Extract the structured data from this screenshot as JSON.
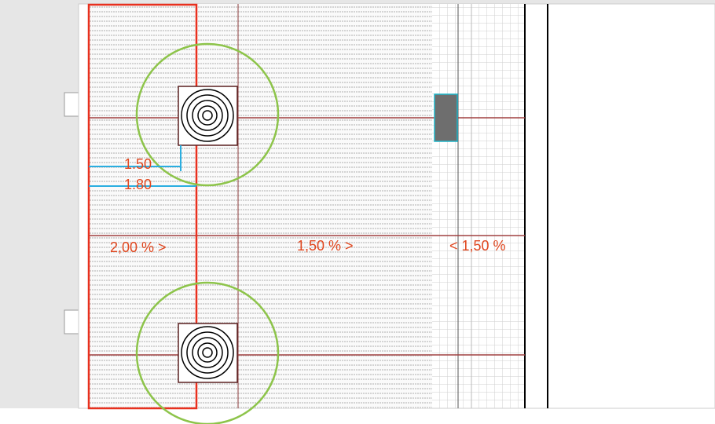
{
  "dimensions": [
    {
      "label": "1.50"
    },
    {
      "label": "1.80"
    }
  ],
  "slopes": [
    {
      "label": "2,00 % >"
    },
    {
      "label": "1,50 % >"
    },
    {
      "label": "< 1,50 %"
    }
  ]
}
